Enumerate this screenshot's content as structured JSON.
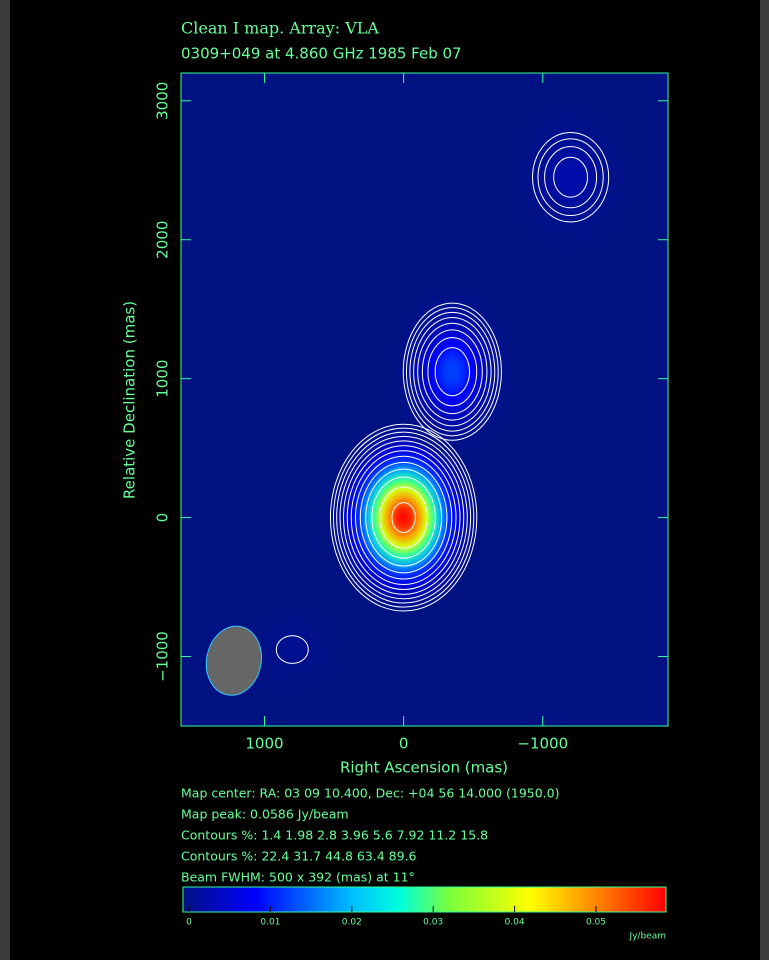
{
  "chart_data": {
    "type": "contour-map",
    "title": "Clean I map.  Array:  VLA",
    "subtitle": "0309+049 at 4.860 GHz 1985 Feb 07",
    "x_label": "Right Ascension  (mas)",
    "y_label": "Relative Declination  (mas)",
    "xlim": [
      1600,
      -1900
    ],
    "ylim": [
      -1500,
      3200
    ],
    "xticks": [
      1000,
      0,
      {
        "value": -1000,
        "label": "−1000"
      }
    ],
    "yticks": [
      {
        "value": -1000,
        "label": "−1000"
      },
      0,
      1000,
      2000,
      3000
    ],
    "components": [
      {
        "x": 0,
        "y": 0,
        "peak": 0.0586,
        "sigma_x": 180,
        "sigma_y": 230
      },
      {
        "x": -350,
        "y": 1050,
        "peak": 0.013,
        "sigma_x": 150,
        "sigma_y": 210
      },
      {
        "x": -1200,
        "y": 2450,
        "peak": 0.003,
        "sigma_x": 170,
        "sigma_y": 200
      },
      {
        "x": 800,
        "y": -950,
        "peak": 0.0011,
        "sigma_x": 150,
        "sigma_y": 130
      }
    ],
    "contour_levels": [
      1.4,
      1.98,
      2.8,
      3.96,
      5.6,
      7.92,
      11.2,
      15.8,
      22.4,
      31.7,
      44.8,
      63.4,
      89.6
    ],
    "beam": {
      "x": 1220,
      "y": -1030,
      "major": 500,
      "minor": 392,
      "pa": 11
    },
    "info_lines": [
      "Map center:  RA: 03 09 10.400,  Dec: +04 56 14.000 (1950.0)",
      "Map peak: 0.0586 Jy/beam",
      "Contours %: 1.4 1.98 2.8 3.96 5.6 7.92 11.2 15.8",
      "Contours %: 22.4 31.7 44.8 63.4 89.6",
      "Beam FWHM: 500 x 392 (mas) at 11°"
    ],
    "colorbar": {
      "lim": [
        0,
        0.0586
      ],
      "ticks": [
        0,
        0.01,
        0.02,
        0.03,
        0.04,
        0.05
      ],
      "label": "Jy/beam"
    },
    "map_peak": 0.0586,
    "axis_color": "#33ff99",
    "contour_color": "#ffffff",
    "beam_color": "#666666"
  }
}
